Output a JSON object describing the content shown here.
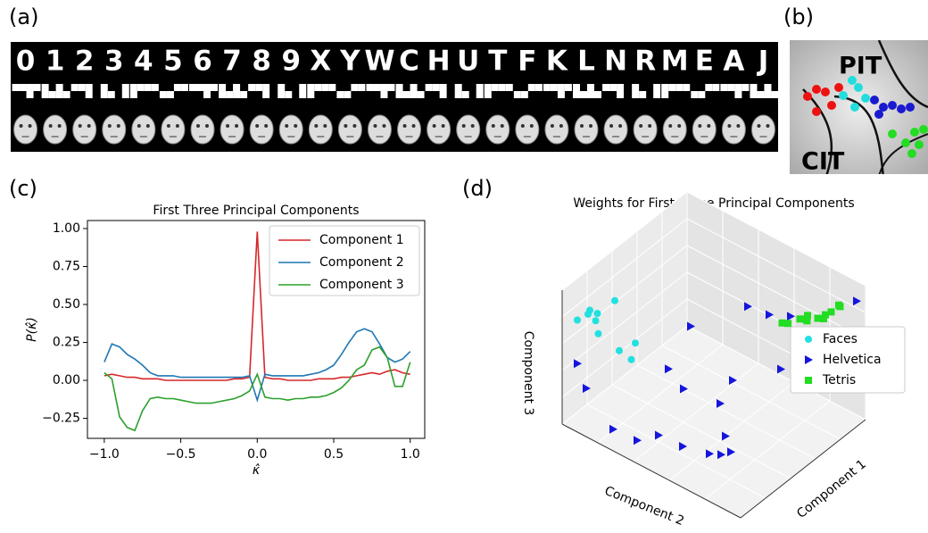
{
  "panel_labels": [
    "(a)",
    "(b)",
    "(c)",
    "(d)"
  ],
  "stimuli": {
    "characters": [
      "0",
      "1",
      "2",
      "3",
      "4",
      "5",
      "6",
      "7",
      "8",
      "9",
      "X",
      "Y",
      "W",
      "C",
      "H",
      "U",
      "T",
      "F",
      "K",
      "L",
      "N",
      "R",
      "M",
      "E",
      "A",
      "J"
    ]
  },
  "brain_map": {
    "labels": [
      "PIT",
      "CIT"
    ]
  },
  "chart_data": [
    {
      "type": "line",
      "title": "First Three Principal Components",
      "xlabel": "κ̂",
      "ylabel": "P(κ̂)",
      "x": [
        -1.0,
        -0.95,
        -0.9,
        -0.85,
        -0.8,
        -0.75,
        -0.7,
        -0.65,
        -0.6,
        -0.55,
        -0.5,
        -0.45,
        -0.4,
        -0.35,
        -0.3,
        -0.25,
        -0.2,
        -0.15,
        -0.1,
        -0.05,
        0.0,
        0.05,
        0.1,
        0.15,
        0.2,
        0.25,
        0.3,
        0.35,
        0.4,
        0.45,
        0.5,
        0.55,
        0.6,
        0.65,
        0.7,
        0.75,
        0.8,
        0.85,
        0.9,
        0.95,
        1.0
      ],
      "series": [
        {
          "name": "Component 1",
          "color": "#d62728",
          "values": [
            0.03,
            0.04,
            0.03,
            0.02,
            0.02,
            0.01,
            0.01,
            0.01,
            0.0,
            0.0,
            0.0,
            0.0,
            0.0,
            0.0,
            0.0,
            0.0,
            0.0,
            0.01,
            0.01,
            0.02,
            0.98,
            0.02,
            0.01,
            0.01,
            0.0,
            0.0,
            0.0,
            0.0,
            0.01,
            0.01,
            0.01,
            0.02,
            0.02,
            0.03,
            0.04,
            0.05,
            0.04,
            0.06,
            0.07,
            0.05,
            0.04
          ]
        },
        {
          "name": "Component 2",
          "color": "#1f77b4",
          "values": [
            0.12,
            0.24,
            0.22,
            0.17,
            0.14,
            0.1,
            0.05,
            0.03,
            0.03,
            0.03,
            0.02,
            0.02,
            0.02,
            0.02,
            0.02,
            0.02,
            0.02,
            0.02,
            0.02,
            0.03,
            -0.13,
            0.04,
            0.03,
            0.03,
            0.03,
            0.03,
            0.03,
            0.04,
            0.05,
            0.07,
            0.1,
            0.17,
            0.25,
            0.32,
            0.34,
            0.32,
            0.24,
            0.15,
            0.12,
            0.14,
            0.19
          ]
        },
        {
          "name": "Component 3",
          "color": "#2ca02c",
          "values": [
            0.05,
            0.01,
            -0.24,
            -0.31,
            -0.33,
            -0.2,
            -0.12,
            -0.11,
            -0.12,
            -0.12,
            -0.13,
            -0.14,
            -0.15,
            -0.15,
            -0.15,
            -0.14,
            -0.13,
            -0.12,
            -0.1,
            -0.07,
            0.04,
            -0.11,
            -0.12,
            -0.12,
            -0.13,
            -0.12,
            -0.12,
            -0.11,
            -0.11,
            -0.1,
            -0.08,
            -0.05,
            0.0,
            0.07,
            0.1,
            0.2,
            0.22,
            0.15,
            -0.04,
            -0.04,
            0.12
          ]
        }
      ],
      "xlim": [
        -1.11,
        1.095
      ],
      "ylim": [
        -0.382,
        1.053
      ],
      "xticks": [
        {
          "value": -1,
          "label": "−1.0"
        },
        {
          "value": -0.5,
          "label": "−0.5"
        },
        {
          "value": 0,
          "label": "0.0"
        },
        0.5,
        {
          "value": 1,
          "label": "1.0"
        }
      ],
      "yticks": [
        {
          "value": -0.25,
          "label": "−0.25"
        },
        {
          "value": 0,
          "label": "0.00"
        },
        0.25,
        {
          "value": 0.5,
          "label": "0.50"
        },
        0.75,
        {
          "value": 1,
          "label": "1.00"
        }
      ],
      "legend": "upper right",
      "grid": false
    },
    {
      "type": "scatter3d",
      "title": "Weights for First Three Principal Components",
      "xlabel": "Component 1",
      "ylabel": "Component 2",
      "zlabel": "Component 3",
      "xlim": [
        -1,
        1
      ],
      "ylim": [
        -1,
        1
      ],
      "zlim": [
        -1,
        1
      ],
      "legend": "center right",
      "series": [
        {
          "name": "Faces",
          "color": "#22e0e0",
          "marker": "circle",
          "x": [
            -0.9,
            -0.8,
            -0.7,
            -0.85,
            -0.75,
            -0.3,
            -0.8,
            -0.75,
            -0.4,
            -0.65
          ],
          "y": [
            -0.9,
            -0.85,
            -0.9,
            -0.7,
            -0.8,
            -0.9,
            -0.5,
            -0.4,
            -0.6,
            -0.85
          ],
          "z": [
            0.55,
            0.6,
            0.55,
            0.45,
            0.5,
            0.4,
            0.3,
            0.2,
            0.05,
            0.5
          ]
        },
        {
          "name": "Helvetica",
          "color": "#1515dd",
          "marker": "triangle",
          "x": [
            1.0,
            0.6,
            0.8,
            0.2,
            -0.3,
            -0.9,
            -0.9,
            -0.2,
            0.3,
            0.5,
            0.1,
            -0.9,
            -0.8,
            -0.6,
            -0.5,
            -0.1,
            -0.5,
            -0.6,
            -0.3,
            0.4
          ],
          "y": [
            0.9,
            0.2,
            0.3,
            -0.4,
            -0.3,
            -0.9,
            -0.8,
            -0.2,
            0.0,
            0.4,
            0.0,
            -0.5,
            -0.3,
            -0.2,
            0.0,
            0.2,
            0.3,
            0.5,
            0.4,
            0.1
          ],
          "z": [
            0.7,
            0.3,
            0.2,
            0.0,
            -0.2,
            -0.1,
            -0.4,
            -0.5,
            -0.6,
            -0.3,
            -0.8,
            -0.8,
            -0.9,
            -0.9,
            -1.0,
            -1.0,
            -0.9,
            -0.7,
            -0.95,
            0.5
          ]
        },
        {
          "name": "Tetris",
          "color": "#22dd22",
          "marker": "square",
          "x": [
            0.95,
            0.9,
            0.95,
            1.0,
            0.9,
            0.95,
            1.0,
            0.9,
            0.95,
            1.0,
            0.95,
            0.85
          ],
          "y": [
            0.1,
            0.2,
            0.3,
            0.35,
            0.4,
            0.5,
            0.55,
            0.6,
            0.65,
            0.7,
            0.75,
            0.45
          ],
          "z": [
            -0.15,
            -0.05,
            0.05,
            0.1,
            0.15,
            0.2,
            0.25,
            0.3,
            0.4,
            0.5,
            0.55,
            0.2
          ]
        }
      ]
    }
  ]
}
